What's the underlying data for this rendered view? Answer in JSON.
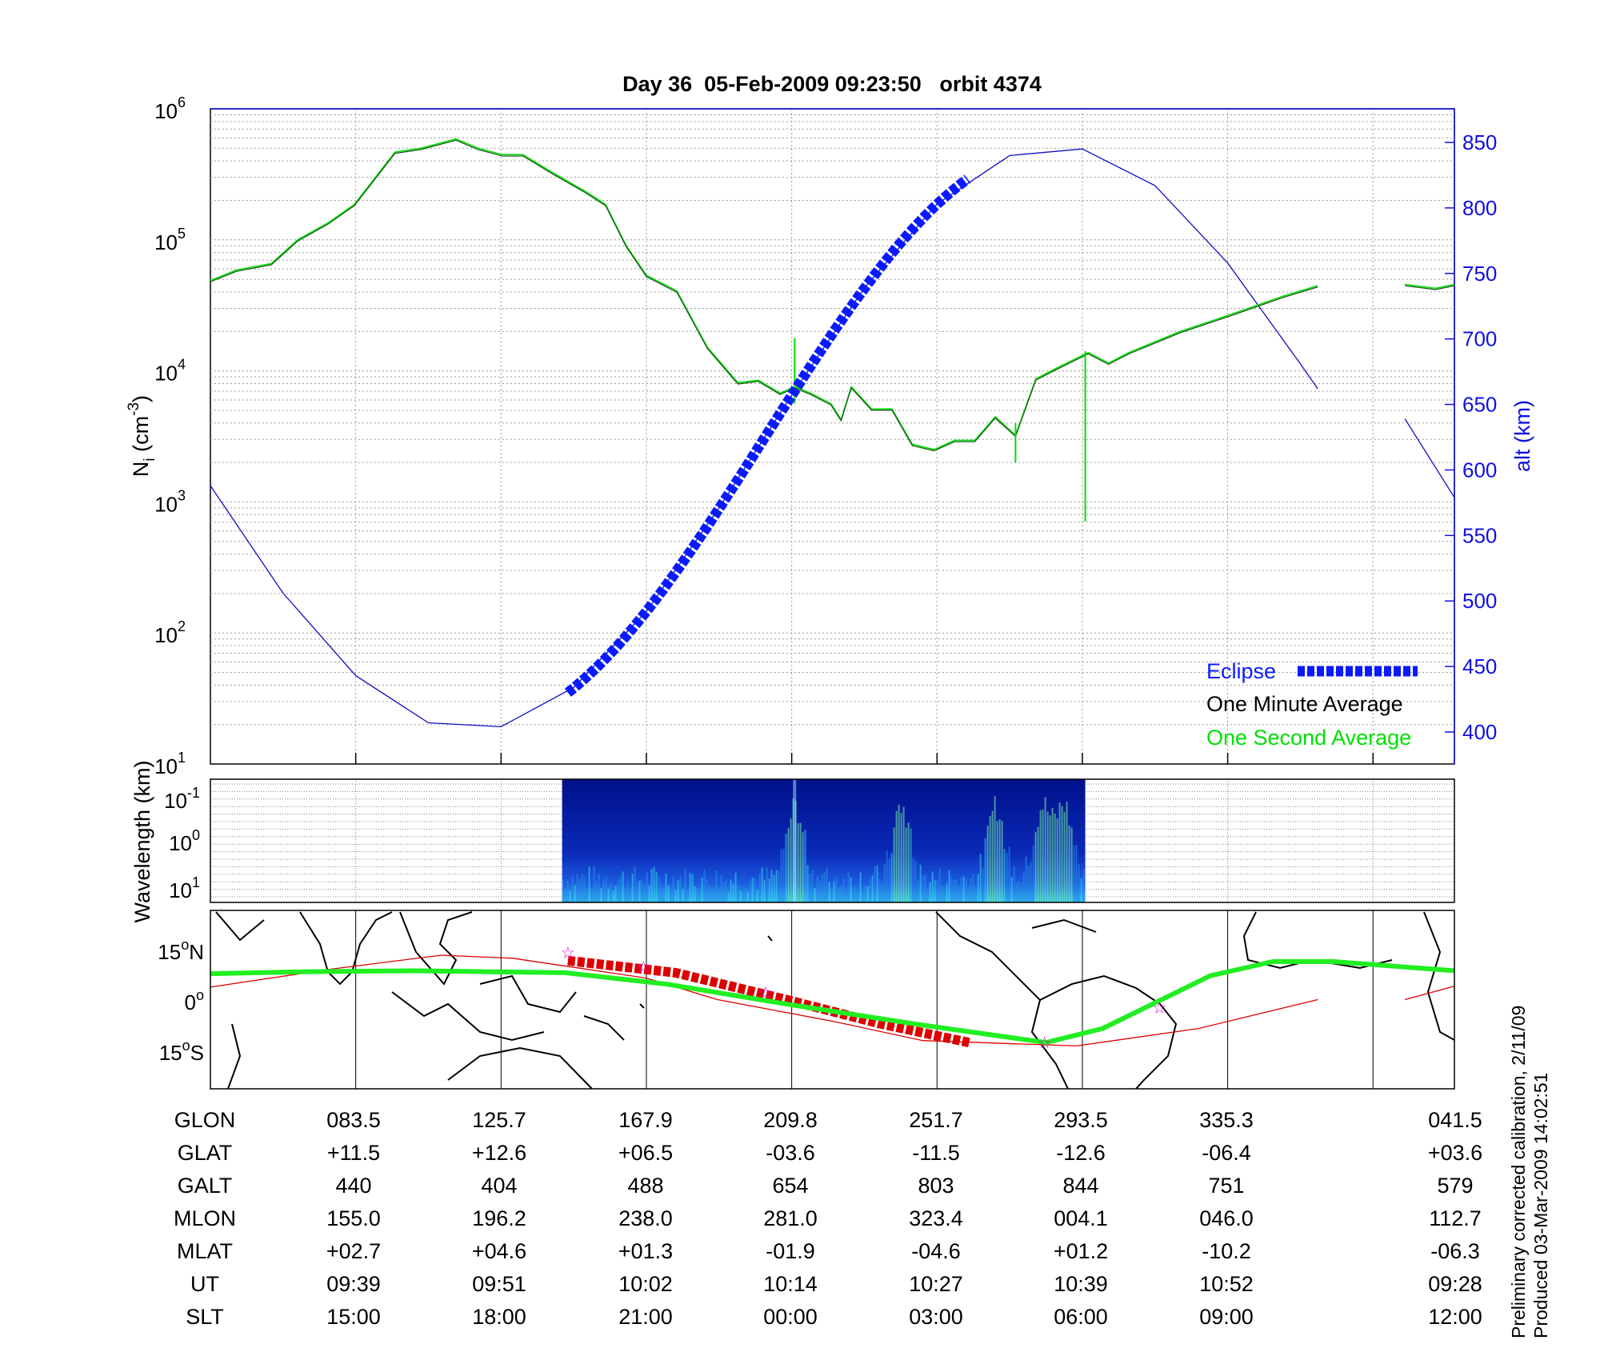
{
  "title": "Day 36  05-Feb-2009 09:23:50   orbit 4374",
  "footer": {
    "line1": "Preliminary corrected calibration, 2/11/09",
    "line2": "Produced 03-Mar-2009 14:02:51"
  },
  "colors": {
    "eclipse": "#0a1aff",
    "minute": "#000000",
    "second": "#00e000",
    "alt": "#1010c0",
    "track": "#22ee22",
    "field": "#dd0000",
    "star": "#dd00dd"
  },
  "chart_data": [
    {
      "type": "line",
      "name": "ion-density",
      "ylabel": "N",
      "ylabel_sub": "i",
      "ylabel_unit": " (cm",
      "ylabel_exp": "-3",
      "ylabel_close": ")",
      "yscale": "log",
      "ylim_exp": [
        1,
        6
      ],
      "yticks": [
        {
          "base": "10",
          "exp": "1"
        },
        {
          "base": "10",
          "exp": "2"
        },
        {
          "base": "10",
          "exp": "3"
        },
        {
          "base": "10",
          "exp": "4"
        },
        {
          "base": "10",
          "exp": "5"
        },
        {
          "base": "10",
          "exp": "6"
        }
      ],
      "y2label": "alt (km)",
      "y2lim": [
        400,
        850
      ],
      "y2ticks": [
        "400",
        "450",
        "500",
        "550",
        "600",
        "650",
        "700",
        "750",
        "800",
        "850"
      ],
      "x_axis_units": "table column index (0 = left edge)",
      "xlim": [
        0,
        8.56
      ],
      "grid": true,
      "legend_position": "bottom-right",
      "legend": [
        {
          "label": "Eclipse",
          "color": "#0a1aff"
        },
        {
          "label": "One Minute Average",
          "color": "#000000"
        },
        {
          "label": "One Second Average",
          "color": "#00e000"
        }
      ],
      "series_log10_density": [
        [
          [
            0,
            4.68
          ],
          [
            0.18,
            4.76
          ],
          [
            0.42,
            4.81
          ],
          [
            0.6,
            4.99
          ],
          [
            0.81,
            5.12
          ],
          [
            0.99,
            5.26
          ],
          [
            1.13,
            5.46
          ],
          [
            1.27,
            5.66
          ],
          [
            1.45,
            5.69
          ],
          [
            1.69,
            5.76
          ],
          [
            1.84,
            5.69
          ],
          [
            2.01,
            5.64
          ],
          [
            2.15,
            5.64
          ],
          [
            2.36,
            5.5
          ],
          [
            2.58,
            5.36
          ],
          [
            2.72,
            5.26
          ],
          [
            2.86,
            4.95
          ],
          [
            3.0,
            4.72
          ],
          [
            3.21,
            4.6
          ],
          [
            3.42,
            4.17
          ],
          [
            3.63,
            3.9
          ],
          [
            3.77,
            3.92
          ],
          [
            3.92,
            3.82
          ],
          [
            4.02,
            3.87
          ],
          [
            4.13,
            3.82
          ],
          [
            4.27,
            3.74
          ],
          [
            4.34,
            3.62
          ],
          [
            4.41,
            3.87
          ],
          [
            4.55,
            3.7
          ],
          [
            4.69,
            3.7
          ],
          [
            4.83,
            3.43
          ],
          [
            4.98,
            3.39
          ],
          [
            5.12,
            3.46
          ],
          [
            5.26,
            3.46
          ],
          [
            5.4,
            3.64
          ],
          [
            5.54,
            3.5
          ],
          [
            5.68,
            3.93
          ],
          [
            5.82,
            4.01
          ],
          [
            6.04,
            4.13
          ],
          [
            6.18,
            4.05
          ],
          [
            6.32,
            4.13
          ],
          [
            6.67,
            4.29
          ],
          [
            7.02,
            4.42
          ],
          [
            7.38,
            4.56
          ],
          [
            7.62,
            4.64
          ]
        ],
        [
          [
            8.22,
            4.65
          ],
          [
            8.43,
            4.62
          ],
          [
            8.56,
            4.65
          ]
        ]
      ],
      "spikes_log10": [
        [
          4.02,
          4.25,
          3.75
        ],
        [
          6.02,
          4.15,
          2.85
        ],
        [
          5.54,
          3.6,
          3.3
        ]
      ],
      "altitude_km": [
        [
          [
            0,
            588
          ],
          [
            0.5,
            506
          ],
          [
            1.0,
            443
          ],
          [
            1.5,
            407
          ],
          [
            2.0,
            404
          ],
          [
            2.5,
            434
          ],
          [
            3.0,
            492
          ],
          [
            3.5,
            571
          ],
          [
            4.0,
            657
          ],
          [
            4.5,
            739
          ],
          [
            5.0,
            803
          ],
          [
            5.5,
            840
          ],
          [
            6.0,
            845
          ],
          [
            6.5,
            817
          ],
          [
            7.0,
            758
          ],
          [
            7.5,
            681
          ],
          [
            7.62,
            662
          ]
        ],
        [
          [
            8.22,
            639
          ],
          [
            8.56,
            579
          ]
        ]
      ],
      "eclipse_range": [
        2.46,
        5.22
      ]
    },
    {
      "type": "heatmap",
      "name": "spectrogram",
      "ylabel": "Wavelength (km)",
      "yticks": [
        {
          "base": "10",
          "exp": "-1"
        },
        {
          "base": "10",
          "exp": "0"
        },
        {
          "base": "10",
          "exp": "1"
        }
      ],
      "data_range": [
        2.42,
        6.02
      ],
      "bright_columns": [
        4.02,
        4.75,
        5.4,
        5.72,
        5.87
      ]
    },
    {
      "type": "line",
      "name": "ground-track-map",
      "yticks": [
        {
          "v": "15",
          "d": "o",
          "h": "N"
        },
        {
          "v": "0",
          "d": "o",
          "h": ""
        },
        {
          "v": "15",
          "d": "o",
          "h": "S"
        }
      ],
      "ylim_deg": [
        -22,
        27
      ],
      "track_lat": [
        [
          0,
          8.3
        ],
        [
          0.67,
          8.9
        ],
        [
          1.38,
          9.2
        ],
        [
          2.44,
          8.6
        ],
        [
          3.14,
          5.2
        ],
        [
          3.99,
          -0.9
        ],
        [
          4.9,
          -7.0
        ],
        [
          5.75,
          -12.2
        ],
        [
          6.14,
          -8.0
        ],
        [
          6.88,
          7.7
        ],
        [
          7.31,
          11.9
        ],
        [
          7.73,
          11.9
        ],
        [
          8.56,
          9.2
        ]
      ],
      "field_line_lat": [
        [
          [
            0,
            4.3
          ],
          [
            0.8,
            9.5
          ],
          [
            1.59,
            13.8
          ],
          [
            2.08,
            12.9
          ],
          [
            3.0,
            7.0
          ],
          [
            3.49,
            0.6
          ],
          [
            4.3,
            -6.0
          ],
          [
            4.9,
            -11.6
          ],
          [
            5.96,
            -13.2
          ],
          [
            6.8,
            -8.0
          ],
          [
            7.62,
            0.6
          ]
        ],
        [
          [
            8.22,
            0.6
          ],
          [
            8.56,
            4.6
          ]
        ]
      ],
      "eclipse_lat": [
        [
          2.46,
          12.2
        ],
        [
          3.2,
          8.6
        ],
        [
          4.0,
          0.2
        ],
        [
          4.6,
          -6.5
        ],
        [
          5.22,
          -12.2
        ]
      ],
      "stars": [
        [
          2.46,
          14.6
        ],
        [
          2.98,
          10.4
        ],
        [
          3.82,
          2.7
        ],
        [
          5.74,
          -12.2
        ],
        [
          6.53,
          -1.8
        ]
      ]
    }
  ],
  "table": {
    "row_labels": [
      "GLON",
      "GLAT",
      "GALT",
      "MLON",
      "MLAT",
      "UT",
      "SLT"
    ],
    "columns": [
      [
        "083.5",
        "+11.5",
        "440",
        "155.0",
        "+02.7",
        "09:39",
        "15:00"
      ],
      [
        "125.7",
        "+12.6",
        "404",
        "196.2",
        "+04.6",
        "09:51",
        "18:00"
      ],
      [
        "167.9",
        "+06.5",
        "488",
        "238.0",
        "+01.3",
        "10:02",
        "21:00"
      ],
      [
        "209.8",
        "-03.6",
        "654",
        "281.0",
        "-01.9",
        "10:14",
        "00:00"
      ],
      [
        "251.7",
        "-11.5",
        "803",
        "323.4",
        "-04.6",
        "10:27",
        "03:00"
      ],
      [
        "293.5",
        "-12.6",
        "844",
        "004.1",
        "+01.2",
        "10:39",
        "06:00"
      ],
      [
        "335.3",
        "-06.4",
        "751",
        "046.0",
        "-10.2",
        "10:52",
        "09:00"
      ],
      [
        "041.5",
        "+03.6",
        "579",
        "112.7",
        "-06.3",
        "09:28",
        "12:00"
      ]
    ]
  }
}
